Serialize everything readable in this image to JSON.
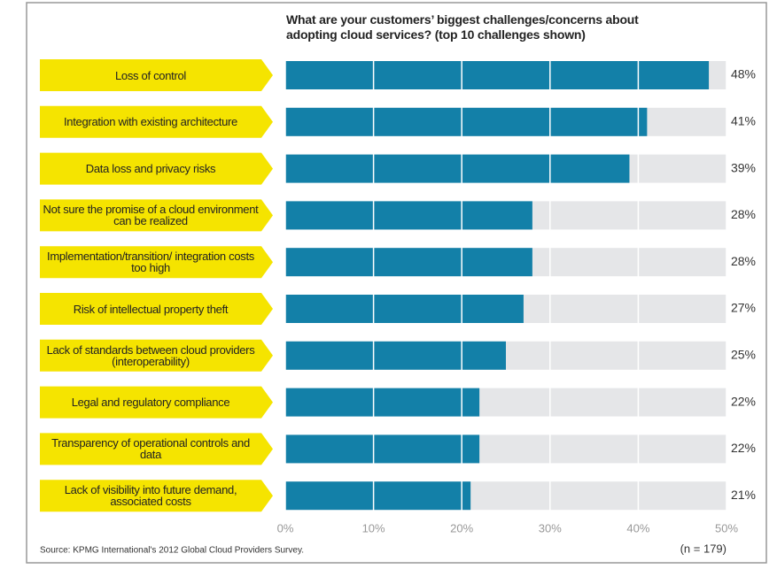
{
  "chart_data": {
    "type": "hbar",
    "title": "What are your customers’ biggest challenges/concerns about adopting cloud services? (top 10 challenges shown)",
    "categories": [
      "Loss of control",
      "Integration with existing architecture",
      "Data loss and privacy risks",
      "Not sure the promise of a cloud environment can be realized",
      "Implementation/transition/ integration costs too high",
      "Risk of intellectual property theft",
      "Lack of standards between cloud providers (interoperability)",
      "Legal and regulatory compliance",
      "Transparency of operational controls and data",
      "Lack of visibility into future demand, associated costs"
    ],
    "values": [
      48,
      41,
      39,
      28,
      28,
      27,
      25,
      22,
      22,
      21
    ],
    "value_labels": [
      "48%",
      "41%",
      "39%",
      "28%",
      "28%",
      "27%",
      "25%",
      "22%",
      "22%",
      "21%"
    ],
    "color": "#1380a8",
    "track_color": "#e5e6e8",
    "label_color": "#f5e400",
    "xlim": [
      0,
      50
    ],
    "xticks": [
      {
        "value": 0,
        "label": "0%"
      },
      {
        "value": 10,
        "label": "10%"
      },
      {
        "value": 20,
        "label": "20%"
      },
      {
        "value": 30,
        "label": "30%"
      },
      {
        "value": 40,
        "label": "40%"
      },
      {
        "value": 50,
        "label": "50%"
      }
    ],
    "source": "Source: KPMG International's 2012 Global Cloud Providers Survey.",
    "sample_size": "(n = 179)"
  }
}
